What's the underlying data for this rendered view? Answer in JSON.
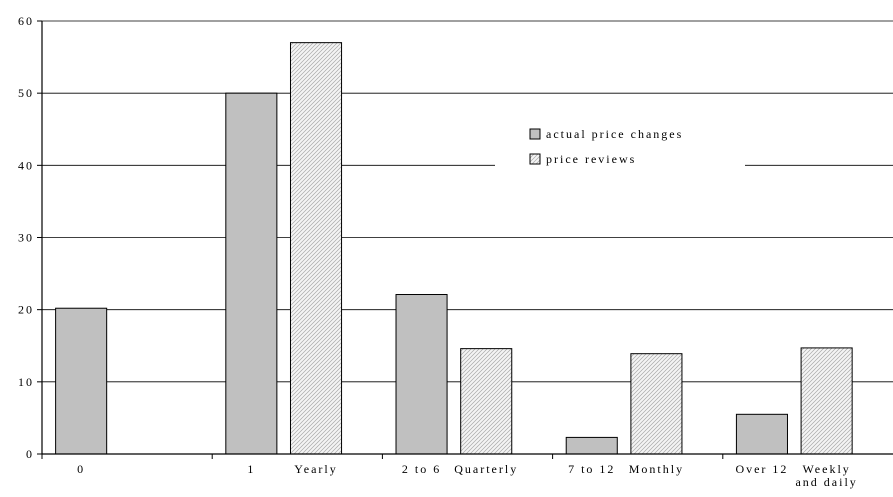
{
  "chart_data": {
    "type": "bar",
    "title": "",
    "xlabel": "",
    "ylabel": "",
    "ylim": [
      0,
      60
    ],
    "yticks": [
      0,
      10,
      20,
      30,
      40,
      50,
      60
    ],
    "grid": true,
    "legend_position": "center-right",
    "groups": [
      {
        "labels": [
          {
            "text": "0",
            "series": "actual price changes"
          }
        ]
      },
      {
        "labels": [
          {
            "text": "1",
            "series": "actual price changes"
          },
          {
            "text": "Yearly",
            "series": "price reviews"
          }
        ]
      },
      {
        "labels": [
          {
            "text": "2 to 6",
            "series": "actual price changes"
          },
          {
            "text": "Quarterly",
            "series": "price reviews"
          }
        ]
      },
      {
        "labels": [
          {
            "text": "7 to 12",
            "series": "actual price changes"
          },
          {
            "text": "Monthly",
            "series": "price reviews"
          }
        ]
      },
      {
        "labels": [
          {
            "text": "Over 12",
            "series": "actual price changes"
          },
          {
            "text": "Weekly and daily",
            "series": "price reviews"
          }
        ]
      }
    ],
    "series": [
      {
        "name": "actual price changes",
        "color": "#c0c0c0",
        "pattern": "solid",
        "values": [
          20.2,
          50,
          22.1,
          2.3,
          5.5
        ]
      },
      {
        "name": "price reviews",
        "color": "#e8e8e8",
        "pattern": "hatched",
        "values": [
          null,
          57,
          14.6,
          13.9,
          14.7
        ]
      }
    ]
  }
}
